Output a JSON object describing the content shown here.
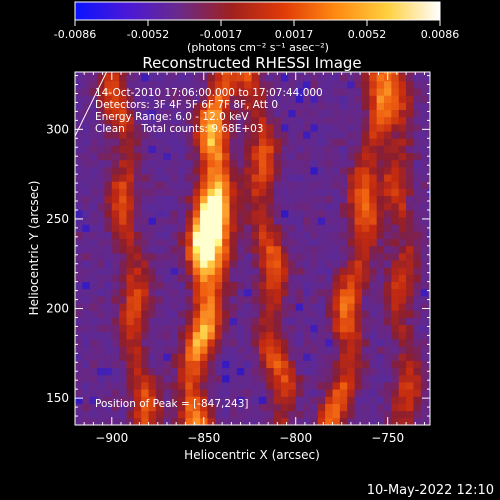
{
  "colorbar": {
    "tick_labels": [
      "-0.0086",
      "-0.0052",
      "-0.0017",
      "0.0017",
      "0.0052",
      "0.0086"
    ],
    "range": [
      -0.0086,
      0.0086
    ],
    "unit_label": "(photons cm⁻² s⁻¹ asec⁻²)",
    "colors": [
      "#0a14ff",
      "#4a18d8",
      "#6a2a8a",
      "#a0201e",
      "#e03a08",
      "#ff8a10",
      "#ffd040",
      "#ffffff"
    ]
  },
  "chart_data": {
    "type": "heatmap",
    "title": "Reconstructed RHESSI Image",
    "xlabel": "Heliocentric X (arcsec)",
    "ylabel": "Heliocentric Y (arcsec)",
    "xlim": [
      -920,
      -727
    ],
    "ylim": [
      135,
      332
    ],
    "x_ticks": [
      -900,
      -850,
      -800,
      -750
    ],
    "y_ticks": [
      150,
      200,
      250,
      300
    ],
    "x_tick_labels": [
      "−900",
      "−850",
      "−800",
      "−750"
    ],
    "y_tick_labels": [
      "150",
      "200",
      "250",
      "300"
    ],
    "peak": [
      -847,
      243
    ],
    "annotations": [
      "14-Oct-2010 17:06:00.000 to 17:07:44.000",
      "Detectors: 3F 4F 5F 6F 7F 8F, Att 0",
      "Energy Range: 6.0 - 12.0 keV",
      "Clean     Total counts: 9.68E+03",
      "Position of Peak = [-847,243]"
    ],
    "bright_streaks": [
      {
        "x_bottom": -885,
        "x_top": -900,
        "intensity": 0.55
      },
      {
        "x_bottom": -858,
        "x_top": -842,
        "intensity": 1.0
      },
      {
        "x_bottom": -810,
        "x_top": -825,
        "intensity": 0.6
      },
      {
        "x_bottom": -780,
        "x_top": -755,
        "intensity": 0.7
      },
      {
        "x_bottom": -742,
        "x_top": -747,
        "intensity": 0.45
      }
    ]
  },
  "footer": {
    "timestamp": "10-May-2022 12:10"
  }
}
